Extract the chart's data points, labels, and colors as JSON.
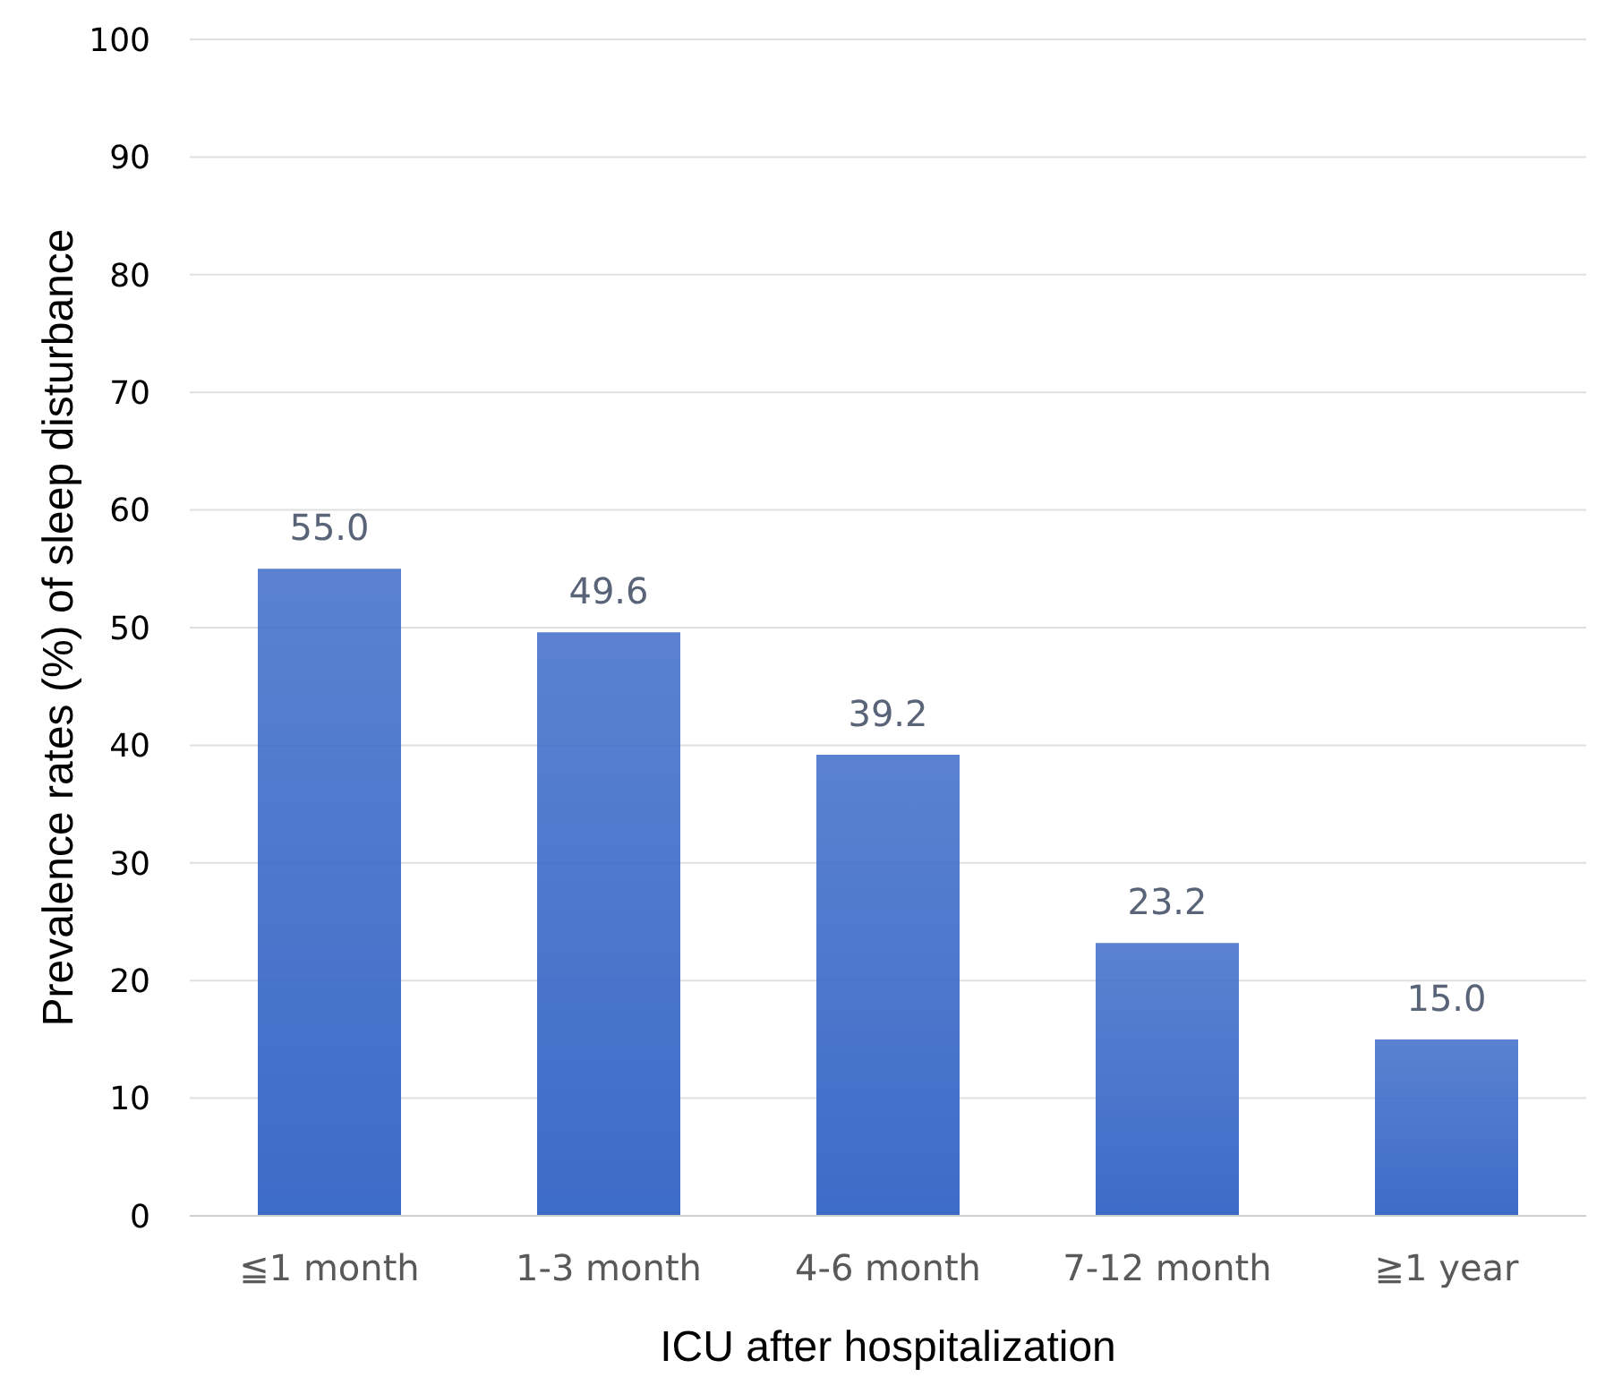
{
  "chart_data": {
    "type": "bar",
    "xlabel": "ICU after hospitalization",
    "ylabel": "Prevalence rates (%) of sleep disturbance",
    "categories": [
      "≦1 month",
      "1-3 month",
      "4-6 month",
      "7-12 month",
      "≧1 year"
    ],
    "values": [
      55.0,
      49.6,
      39.2,
      23.2,
      15.0
    ],
    "value_labels": [
      "55.0",
      "49.6",
      "39.2",
      "23.2",
      "15.0"
    ],
    "color": "#3d6cc8",
    "ylim": [
      0,
      100
    ],
    "yticks": [
      0,
      10,
      20,
      30,
      40,
      50,
      60,
      70,
      80,
      90,
      100
    ],
    "grid": "y"
  }
}
